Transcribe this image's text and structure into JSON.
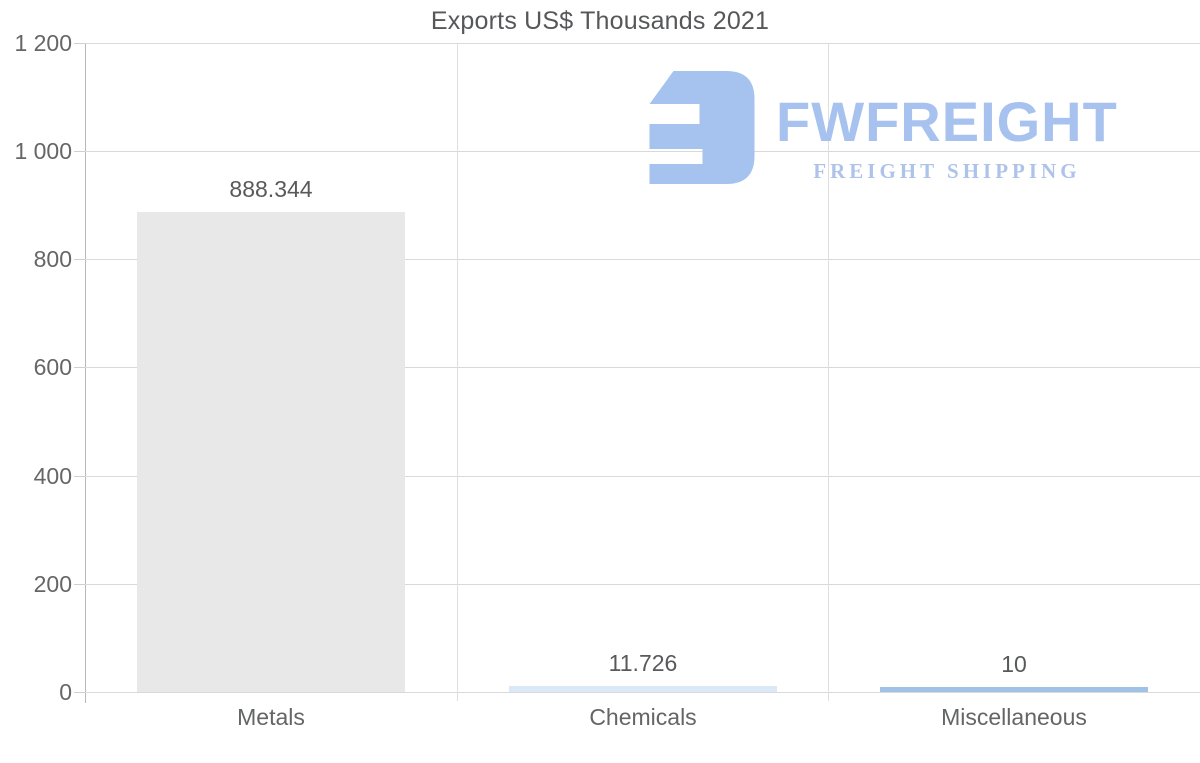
{
  "title": "Exports US$ Thousands 2021",
  "watermark": {
    "brand": "FWFREIGHT",
    "tagline": "FREIGHT SHIPPING",
    "icon": "fwfreight-logo-icon",
    "icon_color": "#a6c2ee",
    "brand_color": "#a7c2ee",
    "tagline_color": "#aec3e9"
  },
  "chart_data": {
    "type": "bar",
    "title": "Exports US$ Thousands 2021",
    "categories": [
      "Metals",
      "Chemicals",
      "Miscellaneous"
    ],
    "values": [
      888.344,
      11.726,
      10
    ],
    "value_labels": [
      "888.344",
      "11.726",
      "10"
    ],
    "bar_colors": [
      "#e8e8e8",
      "#dbe9f7",
      "#9fc2e6"
    ],
    "xlabel": "",
    "ylabel": "",
    "ylim": [
      0,
      1200
    ],
    "yticks": [
      0,
      200,
      400,
      600,
      800,
      1000,
      1200
    ],
    "ytick_labels": [
      "0",
      "200",
      "400",
      "600",
      "800",
      "1 000",
      "1 200"
    ],
    "grid": true,
    "legend": false,
    "colors": {
      "gridline": "#d9d9d9",
      "axis": "#b7b7b7",
      "title_text": "#565759",
      "tick_text": "#666666",
      "value_text": "#58595b"
    }
  }
}
